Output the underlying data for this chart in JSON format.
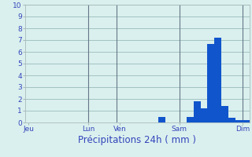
{
  "title": "",
  "xlabel": "Précipitations 24h ( mm )",
  "ylabel": "",
  "background_color": "#daf0ee",
  "bar_color": "#1155cc",
  "grid_color": "#99bbbb",
  "vline_color": "#667788",
  "ylim": [
    0,
    10
  ],
  "yticks": [
    0,
    1,
    2,
    3,
    4,
    5,
    6,
    7,
    8,
    9,
    10
  ],
  "num_bars": 32,
  "bar_values": [
    0,
    0,
    0,
    0,
    0,
    0,
    0,
    0,
    0,
    0,
    0,
    0,
    0,
    0,
    0,
    0,
    0,
    0,
    0,
    0.5,
    0,
    0,
    0,
    0.5,
    1.8,
    1.2,
    6.7,
    7.2,
    1.4,
    0.4,
    0.2,
    0.2
  ],
  "day_labels": [
    "Jeu",
    "Lun",
    "Ven",
    "Sam",
    "Dim"
  ],
  "day_positions": [
    0.5,
    9,
    13.5,
    22,
    31
  ],
  "vline_positions": [
    9,
    13,
    22,
    31
  ],
  "text_color": "#3344bb",
  "tick_fontsize": 6.5,
  "xlabel_fontsize": 8.5
}
